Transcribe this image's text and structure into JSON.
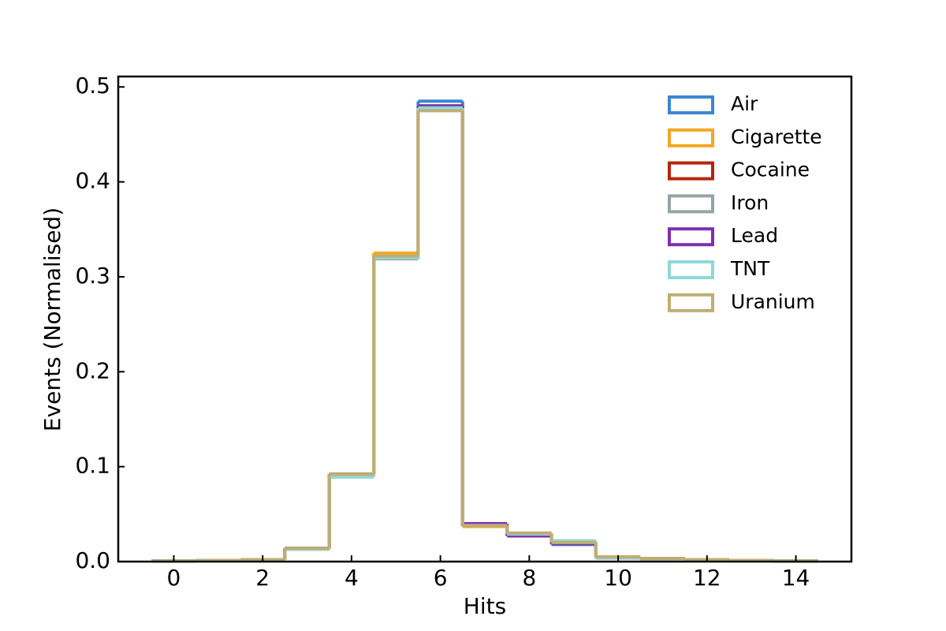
{
  "chart_data": {
    "type": "step_histogram",
    "xlabel": "Hits",
    "ylabel": "Events (Normalised)",
    "bins": [
      -0.5,
      0.5,
      1.5,
      2.5,
      3.5,
      4.5,
      5.5,
      6.5,
      7.5,
      8.5,
      9.5,
      10.5,
      11.5,
      12.5,
      13.5,
      14.5
    ],
    "series": [
      {
        "name": "Air",
        "color": "#3a87d2",
        "values": [
          0.0005,
          0.001,
          0.002,
          0.014,
          0.092,
          0.32,
          0.485,
          0.038,
          0.028,
          0.018,
          0.004,
          0.003,
          0.002,
          0.001,
          0.0005
        ]
      },
      {
        "name": "Cigarette",
        "color": "#f5a623",
        "values": [
          0.0005,
          0.001,
          0.002,
          0.013,
          0.092,
          0.325,
          0.478,
          0.037,
          0.03,
          0.02,
          0.005,
          0.003,
          0.002,
          0.001,
          0.0005
        ]
      },
      {
        "name": "Cocaine",
        "color": "#b5260c",
        "values": [
          0.0005,
          0.001,
          0.002,
          0.014,
          0.092,
          0.321,
          0.48,
          0.038,
          0.029,
          0.019,
          0.004,
          0.003,
          0.002,
          0.001,
          0.0005
        ]
      },
      {
        "name": "Iron",
        "color": "#95a5a6",
        "values": [
          0.0005,
          0.001,
          0.002,
          0.014,
          0.091,
          0.319,
          0.478,
          0.038,
          0.029,
          0.02,
          0.004,
          0.003,
          0.002,
          0.001,
          0.0005
        ]
      },
      {
        "name": "Lead",
        "color": "#7d2fb0",
        "values": [
          0.0005,
          0.001,
          0.002,
          0.014,
          0.092,
          0.321,
          0.48,
          0.04,
          0.027,
          0.019,
          0.004,
          0.003,
          0.002,
          0.001,
          0.0005
        ]
      },
      {
        "name": "TNT",
        "color": "#8fd8d8",
        "values": [
          0.0005,
          0.001,
          0.002,
          0.013,
          0.089,
          0.32,
          0.478,
          0.038,
          0.029,
          0.022,
          0.004,
          0.003,
          0.002,
          0.001,
          0.0005
        ]
      },
      {
        "name": "Uranium",
        "color": "#bfae72",
        "values": [
          0.0005,
          0.001,
          0.002,
          0.014,
          0.092,
          0.322,
          0.475,
          0.038,
          0.03,
          0.02,
          0.005,
          0.003,
          0.002,
          0.001,
          0.0005
        ]
      }
    ],
    "xlim": [
      -1.25,
      15.25
    ],
    "xticks": [
      0,
      2,
      4,
      6,
      8,
      10,
      12,
      14
    ],
    "ylim": [
      0,
      0.511
    ],
    "yticks": [
      {
        "value": 0,
        "label": "0.0"
      },
      {
        "value": 0.1,
        "label": "0.1"
      },
      {
        "value": 0.2,
        "label": "0.2"
      },
      {
        "value": 0.3,
        "label": "0.3"
      },
      {
        "value": 0.4,
        "label": "0.4"
      },
      {
        "value": 0.5,
        "label": "0.5"
      }
    ],
    "legend": "upper right",
    "grid": false
  }
}
